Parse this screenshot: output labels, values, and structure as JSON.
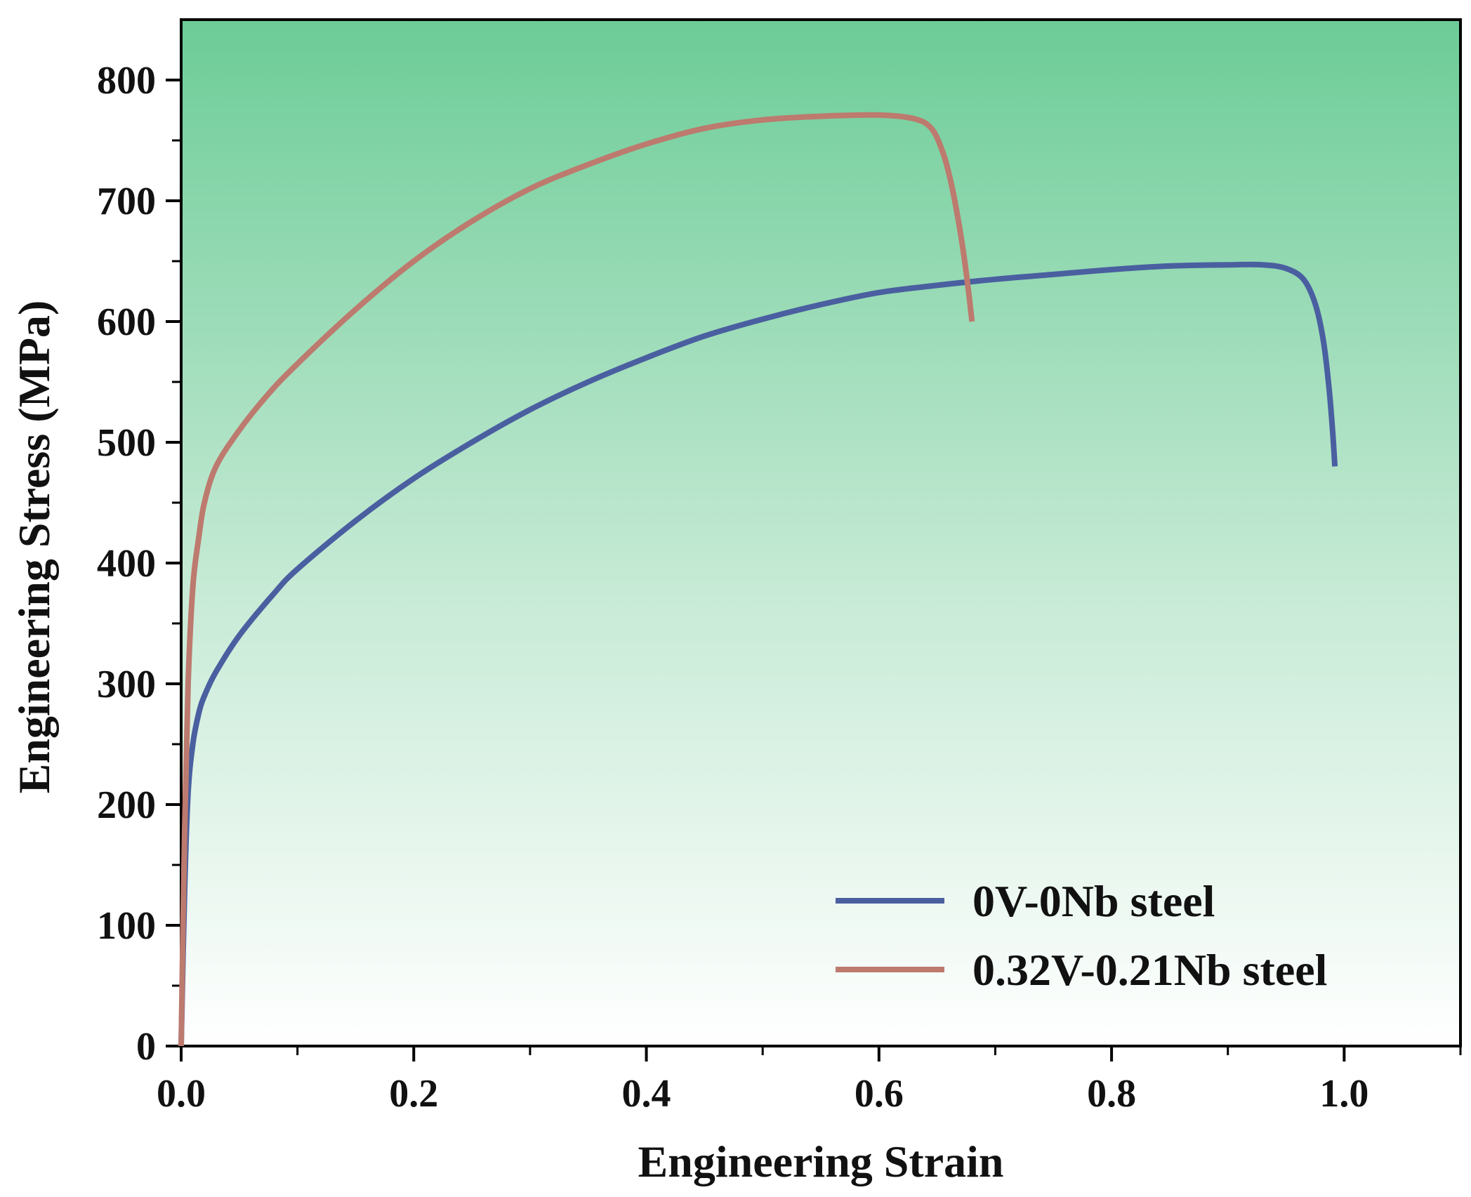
{
  "chart_data": {
    "type": "line",
    "title": "",
    "xlabel": "Engineering Strain",
    "ylabel": "Engineering Stress (MPa)",
    "xlim": [
      0,
      1.1
    ],
    "ylim": [
      0,
      850
    ],
    "x_ticks": [
      0.0,
      0.2,
      0.4,
      0.6,
      0.8,
      1.0
    ],
    "x_tick_labels": [
      "0.0",
      "0.2",
      "0.4",
      "0.6",
      "0.8",
      "1.0"
    ],
    "y_ticks": [
      0,
      100,
      200,
      300,
      400,
      500,
      600,
      700,
      800
    ],
    "y_tick_labels": [
      "0",
      "100",
      "200",
      "300",
      "400",
      "500",
      "600",
      "700",
      "800"
    ],
    "grid": false,
    "legend_position": "bottom-right",
    "background_gradient": {
      "top": "#6ccc97",
      "bottom": "#ffffff"
    },
    "series": [
      {
        "name": "0V-0Nb steel",
        "color": "#4a5fa0",
        "x": [
          0,
          0.003,
          0.006,
          0.01,
          0.015,
          0.02,
          0.03,
          0.05,
          0.08,
          0.1,
          0.15,
          0.2,
          0.25,
          0.3,
          0.35,
          0.4,
          0.45,
          0.5,
          0.55,
          0.6,
          0.65,
          0.7,
          0.75,
          0.8,
          0.85,
          0.9,
          0.93,
          0.95,
          0.965,
          0.975,
          0.982,
          0.987,
          0.99,
          0.992
        ],
        "y": [
          0,
          130,
          210,
          250,
          275,
          290,
          310,
          340,
          375,
          395,
          435,
          470,
          500,
          527,
          550,
          570,
          588,
          602,
          614,
          624,
          630,
          635,
          639,
          643,
          646,
          647,
          647,
          644,
          635,
          615,
          585,
          545,
          510,
          480
        ]
      },
      {
        "name": "0.32V-0.21Nb steel",
        "color": "#bd7a6e",
        "x": [
          0,
          0.003,
          0.006,
          0.01,
          0.015,
          0.02,
          0.03,
          0.05,
          0.075,
          0.1,
          0.15,
          0.2,
          0.25,
          0.3,
          0.35,
          0.4,
          0.45,
          0.5,
          0.55,
          0.6,
          0.63,
          0.645,
          0.655,
          0.662,
          0.668,
          0.673,
          0.677,
          0.68
        ],
        "y": [
          0,
          180,
          300,
          380,
          420,
          450,
          480,
          510,
          540,
          565,
          610,
          650,
          683,
          710,
          730,
          747,
          760,
          767,
          770,
          771,
          768,
          760,
          740,
          715,
          685,
          655,
          625,
          600
        ]
      }
    ]
  }
}
